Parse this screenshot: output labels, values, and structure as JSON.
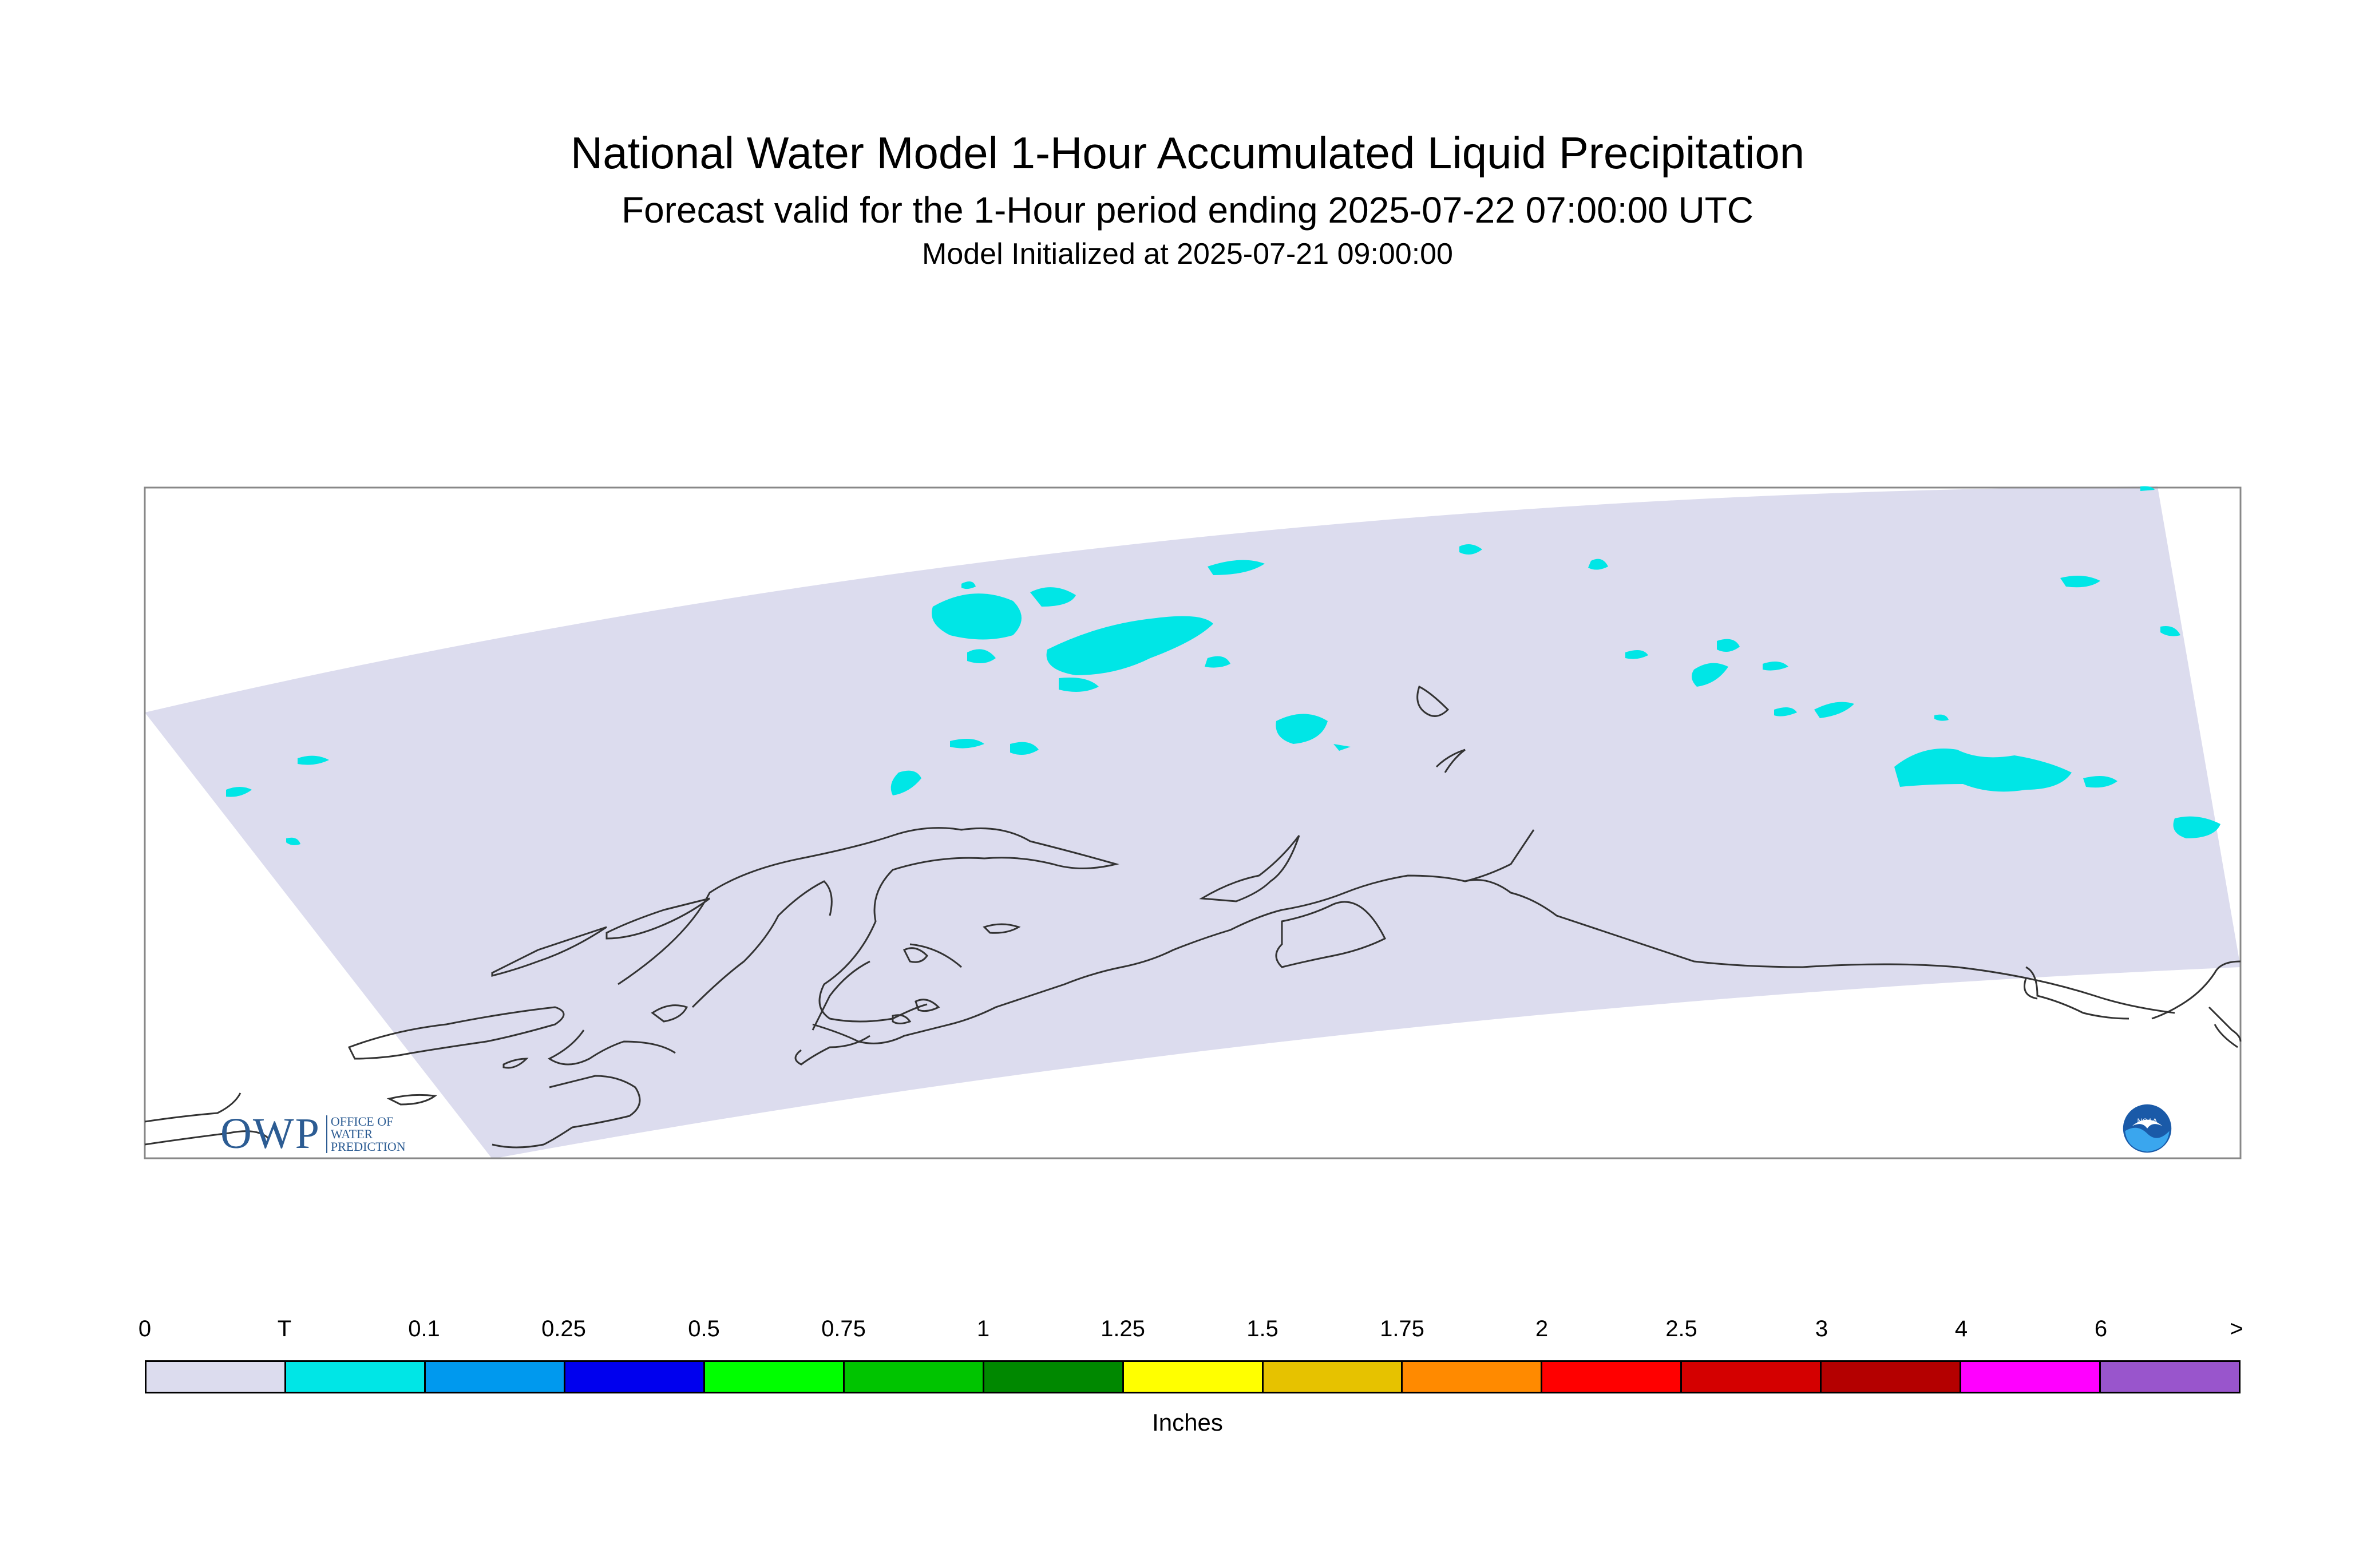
{
  "header": {
    "title": "National Water Model 1-Hour Accumulated Liquid Precipitation",
    "subtitle": "Forecast valid for the 1-Hour period ending 2025-07-22 07:00:00 UTC",
    "init": "Model Initialized at 2025-07-21 09:00:00"
  },
  "logos": {
    "owp_big": "OWP",
    "owp_l1": "OFFICE OF",
    "owp_l2": "WATER",
    "owp_l3": "PREDICTION",
    "noaa": "NOAA"
  },
  "legend": {
    "units": "Inches",
    "ticks": [
      "0",
      "T",
      "0.1",
      "0.25",
      "0.5",
      "0.75",
      "1",
      "1.25",
      "1.5",
      "1.75",
      "2",
      "2.5",
      "3",
      "4",
      "6",
      ">"
    ],
    "colors": [
      "#dcdcee",
      "#00e6e6",
      "#0099ee",
      "#0000ee",
      "#00ff00",
      "#00c400",
      "#008800",
      "#ffff00",
      "#e6c200",
      "#ff8a00",
      "#ff0000",
      "#d40000",
      "#b40000",
      "#ff00ff",
      "#9955cc"
    ]
  },
  "map": {
    "domain_fill": "#dcdcee",
    "precip_fill": "#00e6e6",
    "coast_stroke": "#333333"
  }
}
